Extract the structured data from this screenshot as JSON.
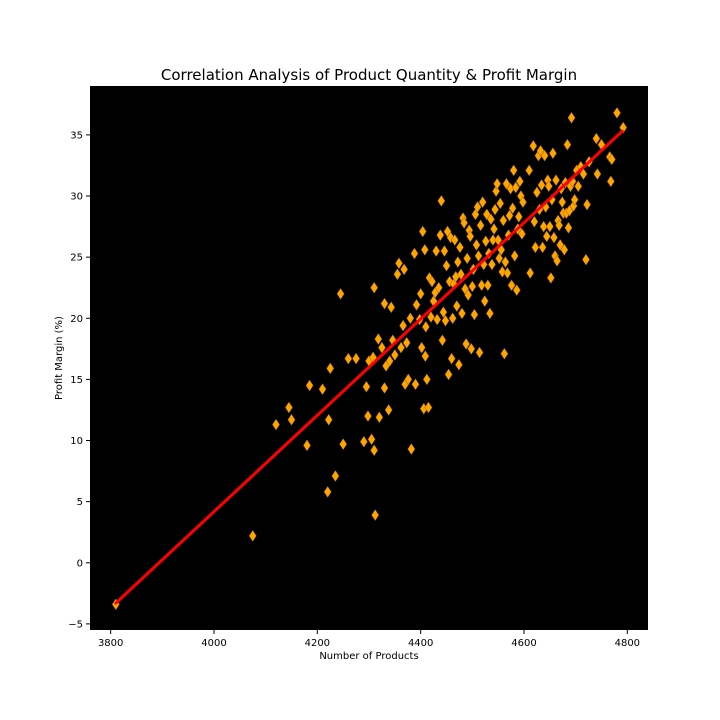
{
  "chart_data": {
    "type": "scatter",
    "title": "Correlation Analysis of Product Quantity & Profit Margin",
    "xlabel": "Number of Products",
    "ylabel": "Profit Margin (%)",
    "xlim": [
      3760,
      4840
    ],
    "ylim": [
      -5.5,
      39
    ],
    "xticks": [
      3800,
      4000,
      4200,
      4400,
      4600,
      4800
    ],
    "yticks": [
      -5,
      0,
      5,
      10,
      15,
      20,
      25,
      30,
      35
    ],
    "background": "#000000",
    "grid": false,
    "marker": "diamond",
    "colors": {
      "points": "#FFA500",
      "point_edge": "#8a5a00",
      "trendline": "#FF0000"
    },
    "trendline": {
      "x": [
        3810,
        4790
      ],
      "y": [
        -3.3,
        35.3
      ]
    },
    "points": [
      [
        3810,
        -3.4
      ],
      [
        4075,
        2.2
      ],
      [
        4120,
        11.3
      ],
      [
        4145,
        12.7
      ],
      [
        4150,
        11.7
      ],
      [
        4180,
        9.6
      ],
      [
        4185,
        14.5
      ],
      [
        4210,
        14.2
      ],
      [
        4220,
        5.8
      ],
      [
        4222,
        11.7
      ],
      [
        4225,
        15.9
      ],
      [
        4235,
        7.1
      ],
      [
        4245,
        22.0
      ],
      [
        4250,
        9.7
      ],
      [
        4260,
        16.7
      ],
      [
        4275,
        16.7
      ],
      [
        4290,
        9.9
      ],
      [
        4295,
        14.4
      ],
      [
        4298,
        12.0
      ],
      [
        4300,
        16.5
      ],
      [
        4305,
        10.1
      ],
      [
        4308,
        16.8
      ],
      [
        4310,
        22.5
      ],
      [
        4310,
        9.2
      ],
      [
        4312,
        3.9
      ],
      [
        4318,
        18.3
      ],
      [
        4320,
        11.9
      ],
      [
        4325,
        17.6
      ],
      [
        4330,
        14.3
      ],
      [
        4330,
        21.2
      ],
      [
        4333,
        16.1
      ],
      [
        4338,
        12.5
      ],
      [
        4340,
        16.5
      ],
      [
        4343,
        20.9
      ],
      [
        4346,
        18.2
      ],
      [
        4350,
        17.0
      ],
      [
        4355,
        23.6
      ],
      [
        4358,
        24.5
      ],
      [
        4362,
        17.6
      ],
      [
        4366,
        19.4
      ],
      [
        4368,
        24.0
      ],
      [
        4370,
        14.6
      ],
      [
        4373,
        18.0
      ],
      [
        4376,
        15.0
      ],
      [
        4380,
        20.0
      ],
      [
        4382,
        9.3
      ],
      [
        4388,
        25.3
      ],
      [
        4390,
        14.6
      ],
      [
        4392,
        21.1
      ],
      [
        4398,
        19.9
      ],
      [
        4400,
        22.0
      ],
      [
        4402,
        17.6
      ],
      [
        4404,
        27.1
      ],
      [
        4406,
        12.6
      ],
      [
        4408,
        25.6
      ],
      [
        4409,
        16.9
      ],
      [
        4410,
        19.3
      ],
      [
        4412,
        15.0
      ],
      [
        4415,
        12.7
      ],
      [
        4417,
        23.3
      ],
      [
        4420,
        20.1
      ],
      [
        4422,
        23.0
      ],
      [
        4425,
        21.4
      ],
      [
        4428,
        22.1
      ],
      [
        4430,
        25.5
      ],
      [
        4432,
        19.9
      ],
      [
        4435,
        22.5
      ],
      [
        4438,
        26.8
      ],
      [
        4440,
        29.6
      ],
      [
        4442,
        18.2
      ],
      [
        4444,
        20.5
      ],
      [
        4446,
        25.5
      ],
      [
        4448,
        19.8
      ],
      [
        4450,
        24.3
      ],
      [
        4452,
        27.1
      ],
      [
        4454,
        15.4
      ],
      [
        4456,
        23.0
      ],
      [
        4458,
        26.6
      ],
      [
        4460,
        16.7
      ],
      [
        4462,
        20.0
      ],
      [
        4464,
        22.8
      ],
      [
        4466,
        26.4
      ],
      [
        4468,
        23.4
      ],
      [
        4470,
        21.0
      ],
      [
        4472,
        24.6
      ],
      [
        4474,
        16.2
      ],
      [
        4476,
        25.8
      ],
      [
        4478,
        23.6
      ],
      [
        4480,
        20.4
      ],
      [
        4482,
        28.2
      ],
      [
        4484,
        27.8
      ],
      [
        4486,
        22.4
      ],
      [
        4488,
        17.9
      ],
      [
        4490,
        24.9
      ],
      [
        4492,
        21.9
      ],
      [
        4494,
        27.2
      ],
      [
        4496,
        26.7
      ],
      [
        4498,
        17.5
      ],
      [
        4500,
        22.6
      ],
      [
        4502,
        24.0
      ],
      [
        4504,
        20.3
      ],
      [
        4506,
        28.5
      ],
      [
        4508,
        26.0
      ],
      [
        4510,
        29.1
      ],
      [
        4512,
        25.1
      ],
      [
        4514,
        17.2
      ],
      [
        4516,
        27.6
      ],
      [
        4518,
        22.7
      ],
      [
        4520,
        29.5
      ],
      [
        4522,
        24.4
      ],
      [
        4524,
        21.4
      ],
      [
        4526,
        26.3
      ],
      [
        4528,
        28.5
      ],
      [
        4530,
        22.7
      ],
      [
        4532,
        25.3
      ],
      [
        4534,
        20.4
      ],
      [
        4536,
        28.1
      ],
      [
        4538,
        24.4
      ],
      [
        4540,
        26.4
      ],
      [
        4542,
        27.3
      ],
      [
        4544,
        28.9
      ],
      [
        4546,
        30.4
      ],
      [
        4548,
        31.0
      ],
      [
        4550,
        26.4
      ],
      [
        4552,
        24.9
      ],
      [
        4554,
        29.4
      ],
      [
        4556,
        25.6
      ],
      [
        4558,
        23.8
      ],
      [
        4560,
        28.0
      ],
      [
        4562,
        17.1
      ],
      [
        4564,
        24.6
      ],
      [
        4566,
        31.0
      ],
      [
        4568,
        23.7
      ],
      [
        4570,
        26.8
      ],
      [
        4572,
        28.4
      ],
      [
        4574,
        30.6
      ],
      [
        4576,
        22.7
      ],
      [
        4578,
        29.0
      ],
      [
        4580,
        32.1
      ],
      [
        4582,
        25.1
      ],
      [
        4584,
        30.7
      ],
      [
        4586,
        22.3
      ],
      [
        4588,
        27.3
      ],
      [
        4590,
        28.3
      ],
      [
        4592,
        31.2
      ],
      [
        4594,
        30.0
      ],
      [
        4596,
        26.9
      ],
      [
        4598,
        29.5
      ],
      [
        4610,
        32.1
      ],
      [
        4612,
        23.7
      ],
      [
        4618,
        34.1
      ],
      [
        4620,
        27.9
      ],
      [
        4622,
        25.8
      ],
      [
        4625,
        30.3
      ],
      [
        4628,
        33.3
      ],
      [
        4630,
        28.9
      ],
      [
        4632,
        33.7
      ],
      [
        4634,
        30.9
      ],
      [
        4636,
        25.8
      ],
      [
        4638,
        27.5
      ],
      [
        4640,
        33.3
      ],
      [
        4642,
        29.1
      ],
      [
        4644,
        26.7
      ],
      [
        4646,
        31.3
      ],
      [
        4648,
        30.8
      ],
      [
        4650,
        27.5
      ],
      [
        4652,
        23.3
      ],
      [
        4654,
        29.7
      ],
      [
        4656,
        33.5
      ],
      [
        4658,
        26.6
      ],
      [
        4660,
        25.1
      ],
      [
        4662,
        31.3
      ],
      [
        4664,
        24.7
      ],
      [
        4666,
        28.0
      ],
      [
        4668,
        27.6
      ],
      [
        4670,
        26.0
      ],
      [
        4672,
        30.6
      ],
      [
        4674,
        29.5
      ],
      [
        4676,
        28.6
      ],
      [
        4678,
        25.6
      ],
      [
        4680,
        31.1
      ],
      [
        4682,
        28.6
      ],
      [
        4684,
        34.2
      ],
      [
        4686,
        27.4
      ],
      [
        4688,
        28.8
      ],
      [
        4690,
        30.8
      ],
      [
        4692,
        36.4
      ],
      [
        4694,
        31.2
      ],
      [
        4696,
        29.2
      ],
      [
        4698,
        29.7
      ],
      [
        4702,
        32.1
      ],
      [
        4705,
        30.8
      ],
      [
        4710,
        32.4
      ],
      [
        4715,
        31.8
      ],
      [
        4720,
        24.8
      ],
      [
        4722,
        29.3
      ],
      [
        4726,
        32.8
      ],
      [
        4740,
        34.7
      ],
      [
        4742,
        31.8
      ],
      [
        4750,
        34.2
      ],
      [
        4766,
        33.2
      ],
      [
        4768,
        31.2
      ],
      [
        4770,
        33.0
      ],
      [
        4780,
        36.8
      ],
      [
        4792,
        35.6
      ]
    ]
  }
}
